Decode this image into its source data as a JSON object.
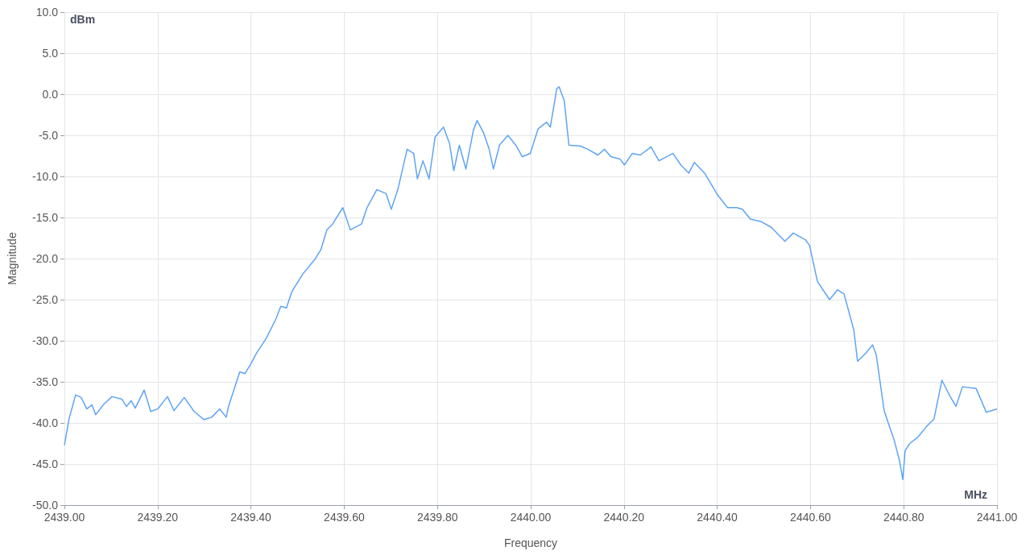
{
  "chart_data": {
    "type": "line",
    "xlabel": "Frequency",
    "ylabel": "Magnitude",
    "annotations": [
      "dBm",
      "MHz"
    ],
    "xlim": [
      2439.0,
      2441.0
    ],
    "xticks": [
      {
        "value": 2439.0,
        "label": "2439.00"
      },
      {
        "value": 2439.2,
        "label": "2439.20"
      },
      {
        "value": 2439.4,
        "label": "2439.40"
      },
      {
        "value": 2439.6,
        "label": "2439.60"
      },
      {
        "value": 2439.8,
        "label": "2439.80"
      },
      {
        "value": 2440.0,
        "label": "2440.00"
      },
      {
        "value": 2440.2,
        "label": "2440.20"
      },
      {
        "value": 2440.4,
        "label": "2440.40"
      },
      {
        "value": 2440.6,
        "label": "2440.60"
      },
      {
        "value": 2440.8,
        "label": "2440.80"
      },
      {
        "value": 2441.0,
        "label": "2441.00"
      }
    ],
    "ylim": [
      -50,
      10
    ],
    "yticks": [
      {
        "value": -50,
        "label": "-50.0"
      },
      {
        "value": -45,
        "label": "-45.0"
      },
      {
        "value": -40,
        "label": "-40.0"
      },
      {
        "value": -35,
        "label": "-35.0"
      },
      {
        "value": -30,
        "label": "-30.0"
      },
      {
        "value": -25,
        "label": "-25.0"
      },
      {
        "value": -20,
        "label": "-20.0"
      },
      {
        "value": -15,
        "label": "-15.0"
      },
      {
        "value": -10,
        "label": "-10.0"
      },
      {
        "value": -5,
        "label": "-5.0"
      },
      {
        "value": 0,
        "label": "0.0"
      },
      {
        "value": 5,
        "label": "5.0"
      },
      {
        "value": 10,
        "label": "10.0"
      }
    ],
    "grid": true,
    "marker": "none",
    "line_style": "solid",
    "series": [
      {
        "color": "#5ea4f5",
        "x": [
          2439.0,
          2439.01,
          2439.024,
          2439.036,
          2439.048,
          2439.059,
          2439.067,
          2439.085,
          2439.102,
          2439.123,
          2439.133,
          2439.143,
          2439.152,
          2439.171,
          2439.185,
          2439.2,
          2439.221,
          2439.235,
          2439.257,
          2439.278,
          2439.299,
          2439.316,
          2439.333,
          2439.347,
          2439.352,
          2439.376,
          2439.387,
          2439.399,
          2439.412,
          2439.433,
          2439.454,
          2439.464,
          2439.476,
          2439.488,
          2439.511,
          2439.537,
          2439.55,
          2439.563,
          2439.575,
          2439.597,
          2439.613,
          2439.637,
          2439.649,
          2439.67,
          2439.69,
          2439.701,
          2439.715,
          2439.735,
          2439.749,
          2439.757,
          2439.769,
          2439.782,
          2439.795,
          2439.813,
          2439.826,
          2439.835,
          2439.847,
          2439.861,
          2439.877,
          2439.885,
          2439.899,
          2439.911,
          2439.92,
          2439.933,
          2439.951,
          2439.968,
          2439.982,
          2439.999,
          2440.016,
          2440.034,
          2440.042,
          2440.056,
          2440.061,
          2440.072,
          2440.082,
          2440.106,
          2440.123,
          2440.144,
          2440.158,
          2440.172,
          2440.192,
          2440.201,
          2440.218,
          2440.235,
          2440.258,
          2440.275,
          2440.305,
          2440.322,
          2440.339,
          2440.351,
          2440.373,
          2440.399,
          2440.422,
          2440.442,
          2440.454,
          2440.471,
          2440.494,
          2440.516,
          2440.545,
          2440.563,
          2440.589,
          2440.598,
          2440.615,
          2440.641,
          2440.658,
          2440.672,
          2440.693,
          2440.701,
          2440.719,
          2440.733,
          2440.741,
          2440.758,
          2440.765,
          2440.779,
          2440.791,
          2440.798,
          2440.803,
          2440.813,
          2440.831,
          2440.848,
          2440.865,
          2440.882,
          2440.896,
          2440.912,
          2440.926,
          2440.955,
          2440.965,
          2440.977,
          2441.0
        ],
        "values": [
          -42.7,
          -39.5,
          -36.6,
          -36.9,
          -38.3,
          -37.8,
          -39.0,
          -37.7,
          -36.8,
          -37.1,
          -38.0,
          -37.3,
          -38.2,
          -36.0,
          -38.6,
          -38.3,
          -36.8,
          -38.5,
          -36.9,
          -38.6,
          -39.6,
          -39.3,
          -38.3,
          -39.3,
          -38.0,
          -33.8,
          -34.0,
          -32.9,
          -31.5,
          -29.7,
          -27.3,
          -25.8,
          -26.0,
          -24.0,
          -21.9,
          -20.1,
          -18.9,
          -16.5,
          -15.8,
          -13.8,
          -16.5,
          -15.8,
          -13.8,
          -11.6,
          -12.1,
          -14.0,
          -11.6,
          -6.7,
          -7.2,
          -10.3,
          -8.1,
          -10.3,
          -5.2,
          -4.0,
          -6.0,
          -9.3,
          -6.2,
          -9.1,
          -4.4,
          -3.2,
          -4.7,
          -6.7,
          -9.1,
          -6.2,
          -5.0,
          -6.2,
          -7.6,
          -7.2,
          -4.2,
          -3.4,
          -4.0,
          0.7,
          0.9,
          -0.8,
          -6.2,
          -6.3,
          -6.7,
          -7.4,
          -6.7,
          -7.6,
          -7.9,
          -8.6,
          -7.2,
          -7.4,
          -6.4,
          -8.1,
          -7.2,
          -8.6,
          -9.6,
          -8.3,
          -9.6,
          -12.1,
          -13.8,
          -13.8,
          -14.0,
          -15.2,
          -15.5,
          -16.2,
          -17.9,
          -16.9,
          -17.7,
          -18.4,
          -22.8,
          -25.0,
          -23.8,
          -24.3,
          -28.7,
          -32.5,
          -31.5,
          -30.5,
          -31.7,
          -38.5,
          -39.7,
          -42.0,
          -44.6,
          -46.9,
          -43.4,
          -42.5,
          -41.7,
          -40.5,
          -39.5,
          -34.8,
          -36.4,
          -38.0,
          -35.6,
          -35.8,
          -37.1,
          -38.7,
          -38.3
        ]
      }
    ]
  }
}
